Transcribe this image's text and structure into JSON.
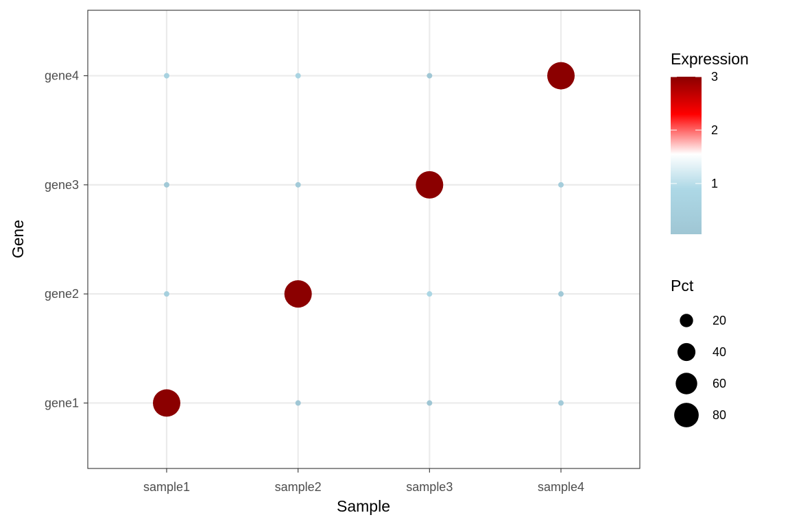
{
  "chart_data": {
    "type": "scatter",
    "subtype": "dot-plot",
    "xlabel": "Sample",
    "ylabel": "Gene",
    "x_categories": [
      "sample1",
      "sample2",
      "sample3",
      "sample4"
    ],
    "y_categories": [
      "gene1",
      "gene2",
      "gene3",
      "gene4"
    ],
    "grid": true,
    "points": [
      {
        "x": "sample1",
        "y": "gene1",
        "expression": 3.0,
        "pct": 85
      },
      {
        "x": "sample2",
        "y": "gene1",
        "expression": 0.1,
        "pct": 5
      },
      {
        "x": "sample3",
        "y": "gene1",
        "expression": 0.05,
        "pct": 5
      },
      {
        "x": "sample4",
        "y": "gene1",
        "expression": 0.3,
        "pct": 5
      },
      {
        "x": "sample1",
        "y": "gene2",
        "expression": 0.5,
        "pct": 5
      },
      {
        "x": "sample2",
        "y": "gene2",
        "expression": 3.0,
        "pct": 85
      },
      {
        "x": "sample3",
        "y": "gene2",
        "expression": 0.8,
        "pct": 5
      },
      {
        "x": "sample4",
        "y": "gene2",
        "expression": 0.2,
        "pct": 5
      },
      {
        "x": "sample1",
        "y": "gene3",
        "expression": 0.2,
        "pct": 5
      },
      {
        "x": "sample2",
        "y": "gene3",
        "expression": 0.3,
        "pct": 5
      },
      {
        "x": "sample3",
        "y": "gene3",
        "expression": 3.0,
        "pct": 85
      },
      {
        "x": "sample4",
        "y": "gene3",
        "expression": 0.4,
        "pct": 5
      },
      {
        "x": "sample1",
        "y": "gene4",
        "expression": 0.6,
        "pct": 5
      },
      {
        "x": "sample2",
        "y": "gene4",
        "expression": 0.7,
        "pct": 5
      },
      {
        "x": "sample3",
        "y": "gene4",
        "expression": 0.1,
        "pct": 5
      },
      {
        "x": "sample4",
        "y": "gene4",
        "expression": 3.0,
        "pct": 85
      }
    ],
    "color_legend": {
      "title": "Expression",
      "min": 0.05,
      "max": 3.0,
      "breaks": [
        1,
        2,
        3
      ],
      "colors": [
        "#9fc6d4",
        "#add8e6",
        "#ffffff",
        "#ff0000",
        "#8b0000"
      ],
      "color_values": [
        0.05,
        0.9,
        1.55,
        2.3,
        3.0
      ]
    },
    "size_legend": {
      "title": "Pct",
      "breaks": [
        20,
        40,
        60,
        80
      ],
      "range": [
        5,
        85
      ]
    },
    "legend_position": "right"
  }
}
